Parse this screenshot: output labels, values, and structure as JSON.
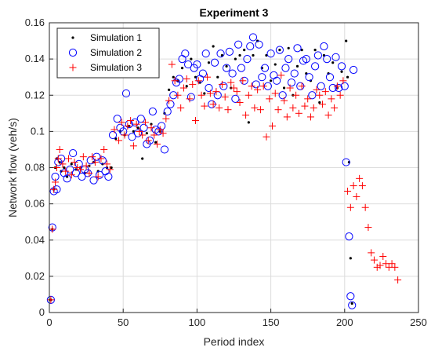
{
  "chart_data": {
    "type": "scatter",
    "title": "Experiment 3",
    "xlabel": "Period index",
    "ylabel": "Network flow (veh/s)",
    "xlim": [
      0,
      250
    ],
    "ylim": [
      0,
      0.16
    ],
    "xticks": [
      0,
      50,
      100,
      150,
      200,
      250
    ],
    "yticks": [
      0,
      0.02,
      0.04,
      0.06,
      0.08,
      0.1,
      0.12,
      0.14,
      0.16
    ],
    "ytick_labels": [
      "0",
      "0.02",
      "0.04",
      "0.06",
      "0.08",
      "0.1",
      "0.12",
      "0.14",
      "0.16"
    ],
    "grid": true,
    "legend_position": "top-left",
    "series": [
      {
        "name": "Simulation 1",
        "marker": "dot",
        "color": "#000000",
        "x": [
          1,
          2,
          3,
          4,
          5,
          7,
          8,
          10,
          12,
          15,
          18,
          21,
          24,
          27,
          30,
          33,
          36,
          39,
          42,
          45,
          48,
          51,
          54,
          57,
          60,
          63,
          66,
          69,
          72,
          75,
          78,
          81,
          84,
          87,
          90,
          93,
          96,
          99,
          102,
          105,
          108,
          111,
          114,
          117,
          120,
          123,
          126,
          129,
          132,
          135,
          138,
          141,
          144,
          147,
          150,
          153,
          156,
          159,
          162,
          165,
          168,
          171,
          174,
          177,
          180,
          183,
          186,
          189,
          192,
          195,
          198,
          201,
          202,
          203,
          204,
          205
        ],
        "y": [
          0.007,
          0.046,
          0.068,
          0.08,
          0.085,
          0.083,
          0.078,
          0.08,
          0.075,
          0.082,
          0.079,
          0.08,
          0.077,
          0.081,
          0.083,
          0.078,
          0.082,
          0.08,
          0.08,
          0.096,
          0.1,
          0.098,
          0.103,
          0.1,
          0.102,
          0.085,
          0.099,
          0.104,
          0.094,
          0.1,
          0.11,
          0.123,
          0.13,
          0.128,
          0.135,
          0.125,
          0.14,
          0.13,
          0.127,
          0.121,
          0.138,
          0.147,
          0.13,
          0.142,
          0.136,
          0.124,
          0.14,
          0.142,
          0.145,
          0.105,
          0.142,
          0.15,
          0.135,
          0.142,
          0.128,
          0.137,
          0.145,
          0.124,
          0.146,
          0.12,
          0.136,
          0.145,
          0.132,
          0.128,
          0.145,
          0.116,
          0.142,
          0.132,
          0.138,
          0.124,
          0.133,
          0.15,
          0.13,
          0.083,
          0.03,
          0.005
        ]
      },
      {
        "name": "Simulation 2",
        "marker": "circle",
        "color": "#0000ff",
        "x": [
          1,
          2,
          3,
          4,
          5,
          6,
          8,
          10,
          12,
          14,
          16,
          18,
          20,
          22,
          24,
          26,
          28,
          30,
          32,
          34,
          36,
          38,
          40,
          43,
          46,
          48,
          50,
          52,
          54,
          56,
          58,
          60,
          62,
          64,
          66,
          68,
          70,
          72,
          74,
          76,
          78,
          80,
          82,
          84,
          86,
          88,
          90,
          92,
          94,
          96,
          98,
          100,
          102,
          104,
          106,
          108,
          110,
          112,
          114,
          116,
          118,
          120,
          122,
          124,
          126,
          128,
          130,
          132,
          134,
          136,
          138,
          140,
          142,
          144,
          146,
          148,
          150,
          152,
          154,
          156,
          158,
          160,
          162,
          164,
          166,
          168,
          170,
          172,
          174,
          176,
          178,
          180,
          182,
          184,
          186,
          188,
          190,
          192,
          194,
          196,
          198,
          200,
          201,
          203,
          204,
          205,
          206
        ],
        "y": [
          0.007,
          0.047,
          0.067,
          0.075,
          0.068,
          0.083,
          0.085,
          0.077,
          0.074,
          0.079,
          0.088,
          0.077,
          0.082,
          0.075,
          0.079,
          0.077,
          0.084,
          0.073,
          0.086,
          0.076,
          0.084,
          0.078,
          0.075,
          0.098,
          0.107,
          0.102,
          0.1,
          0.121,
          0.104,
          0.097,
          0.105,
          0.099,
          0.107,
          0.102,
          0.093,
          0.095,
          0.111,
          0.101,
          0.1,
          0.103,
          0.09,
          0.111,
          0.115,
          0.12,
          0.127,
          0.129,
          0.14,
          0.143,
          0.137,
          0.119,
          0.135,
          0.137,
          0.129,
          0.132,
          0.143,
          0.124,
          0.115,
          0.138,
          0.12,
          0.143,
          0.125,
          0.135,
          0.144,
          0.132,
          0.118,
          0.148,
          0.135,
          0.128,
          0.14,
          0.147,
          0.152,
          0.126,
          0.148,
          0.13,
          0.135,
          0.125,
          0.143,
          0.131,
          0.128,
          0.145,
          0.12,
          0.135,
          0.14,
          0.127,
          0.132,
          0.146,
          0.125,
          0.139,
          0.14,
          0.13,
          0.12,
          0.136,
          0.142,
          0.125,
          0.147,
          0.14,
          0.13,
          0.124,
          0.141,
          0.124,
          0.136,
          0.125,
          0.083,
          0.042,
          0.009,
          0.004,
          0.134
        ]
      },
      {
        "name": "Simulation 3",
        "marker": "plus",
        "color": "#ff0000",
        "x": [
          1,
          2,
          3,
          4,
          5,
          6,
          7,
          9,
          11,
          13,
          15,
          17,
          19,
          21,
          23,
          25,
          27,
          29,
          31,
          33,
          35,
          37,
          39,
          41,
          44,
          47,
          49,
          51,
          53,
          55,
          57,
          59,
          61,
          63,
          65,
          67,
          69,
          71,
          73,
          75,
          77,
          79,
          81,
          83,
          85,
          87,
          89,
          91,
          93,
          95,
          97,
          99,
          101,
          103,
          105,
          107,
          109,
          111,
          113,
          115,
          117,
          119,
          121,
          123,
          125,
          127,
          129,
          131,
          133,
          135,
          137,
          139,
          141,
          143,
          145,
          147,
          149,
          151,
          153,
          155,
          157,
          159,
          161,
          163,
          165,
          167,
          169,
          171,
          173,
          175,
          177,
          179,
          181,
          183,
          185,
          187,
          189,
          191,
          193,
          195,
          197,
          199,
          202,
          204,
          206,
          208,
          210,
          212,
          214,
          216,
          218,
          220,
          222,
          224,
          226,
          228,
          230,
          232,
          234,
          236
        ],
        "y": [
          0.007,
          0.046,
          0.068,
          0.072,
          0.08,
          0.085,
          0.09,
          0.082,
          0.078,
          0.085,
          0.076,
          0.083,
          0.08,
          0.079,
          0.086,
          0.081,
          0.077,
          0.086,
          0.083,
          0.075,
          0.085,
          0.09,
          0.082,
          0.079,
          0.101,
          0.095,
          0.105,
          0.098,
          0.103,
          0.106,
          0.092,
          0.104,
          0.1,
          0.098,
          0.105,
          0.095,
          0.102,
          0.098,
          0.093,
          0.101,
          0.099,
          0.107,
          0.117,
          0.137,
          0.128,
          0.12,
          0.113,
          0.124,
          0.129,
          0.118,
          0.126,
          0.106,
          0.128,
          0.12,
          0.114,
          0.13,
          0.121,
          0.115,
          0.122,
          0.113,
          0.126,
          0.119,
          0.112,
          0.127,
          0.124,
          0.122,
          0.116,
          0.128,
          0.109,
          0.12,
          0.125,
          0.113,
          0.123,
          0.112,
          0.125,
          0.097,
          0.118,
          0.103,
          0.121,
          0.112,
          0.131,
          0.117,
          0.108,
          0.124,
          0.113,
          0.12,
          0.11,
          0.125,
          0.114,
          0.118,
          0.108,
          0.113,
          0.123,
          0.12,
          0.115,
          0.122,
          0.109,
          0.118,
          0.113,
          0.125,
          0.12,
          0.128,
          0.067,
          0.058,
          0.07,
          0.064,
          0.074,
          0.07,
          0.058,
          0.047,
          0.033,
          0.029,
          0.025,
          0.026,
          0.031,
          0.027,
          0.025,
          0.027,
          0.025,
          0.018
        ]
      }
    ]
  }
}
